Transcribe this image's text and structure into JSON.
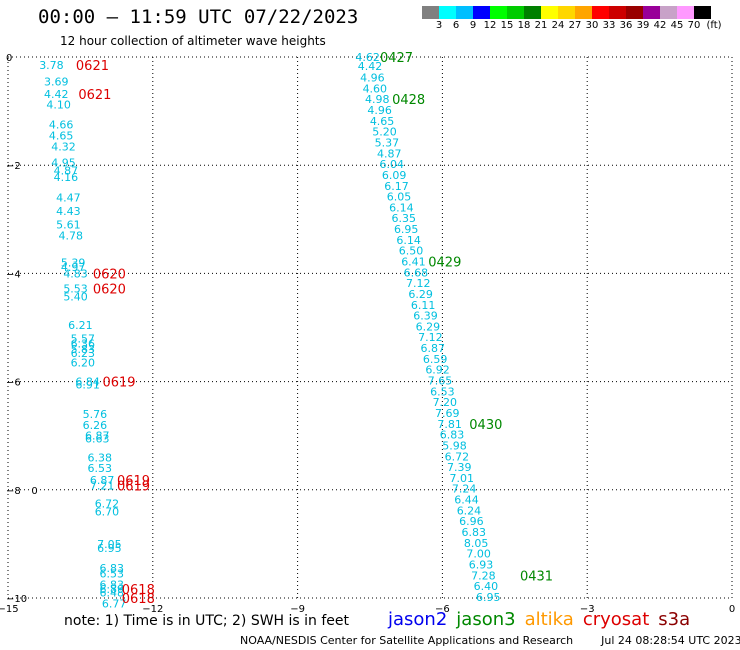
{
  "header": {
    "title": "00:00 – 11:59 UTC 07/22/2023",
    "subtitle": "12 hour collection of altimeter wave heights"
  },
  "colorbar": {
    "colors": [
      "#808080",
      "#00ffff",
      "#00bfff",
      "#0000ff",
      "#00ff00",
      "#00cc00",
      "#008000",
      "#ffff00",
      "#ffd700",
      "#ffa500",
      "#ff0000",
      "#cc0000",
      "#990000",
      "#990099",
      "#c8a2c8",
      "#ff99ff",
      "#000000"
    ],
    "labels": [
      "3",
      "6",
      "9",
      "12",
      "15",
      "18",
      "21",
      "24",
      "27",
      "30",
      "33",
      "36",
      "39",
      "42",
      "45",
      "70"
    ],
    "unit": "(ft)"
  },
  "footer": {
    "note": "note:  1) Time is in UTC; 2) SWH is in feet",
    "satellites": [
      {
        "name": "jason2",
        "color": "#0000ee"
      },
      {
        "name": "jason3",
        "color": "#008800"
      },
      {
        "name": "altika",
        "color": "#ff9900"
      },
      {
        "name": "cryosat",
        "color": "#dd0000"
      },
      {
        "name": "s3a",
        "color": "#8b0000"
      }
    ],
    "credit": "NOAA/NESDIS Center for Satellite Applications and Research",
    "timestamp": "Jul 24 08:28:54 UTC 2023"
  },
  "chart_data": {
    "type": "scatter",
    "xlim": [
      -15,
      0
    ],
    "ylim": [
      -10,
      0
    ],
    "x_ticks": [
      -15,
      -12,
      -9,
      -6,
      -3,
      0
    ],
    "y_ticks": [
      0,
      -2,
      -4,
      -6,
      -8,
      -10
    ],
    "x_tick_labels": [
      "−15",
      "−12",
      "−9",
      "−6",
      "−3",
      "0"
    ],
    "y_tick_labels": [
      "0",
      "−2",
      "−4",
      "−6",
      "−8",
      "−10"
    ],
    "grid": true,
    "track_color": "#00bfdf",
    "series": [
      {
        "satellite": "cryosat",
        "points": [
          {
            "x": -14.1,
            "y": -0.15,
            "v": "3.78"
          },
          {
            "x": -14.0,
            "y": -0.45,
            "v": "3.69"
          },
          {
            "x": -14.0,
            "y": -0.68,
            "v": "4.42"
          },
          {
            "x": -13.95,
            "y": -0.88,
            "v": "4.10"
          },
          {
            "x": -13.9,
            "y": -1.25,
            "v": "4.66"
          },
          {
            "x": -13.9,
            "y": -1.45,
            "v": "4.65"
          },
          {
            "x": -13.85,
            "y": -1.65,
            "v": "4.32"
          },
          {
            "x": -13.85,
            "y": -1.95,
            "v": "4.95"
          },
          {
            "x": -13.8,
            "y": -2.1,
            "v": "4.87"
          },
          {
            "x": -13.8,
            "y": -2.22,
            "v": "4.16"
          },
          {
            "x": -13.75,
            "y": -2.6,
            "v": "4.47"
          },
          {
            "x": -13.75,
            "y": -2.85,
            "v": "4.43"
          },
          {
            "x": -13.75,
            "y": -3.1,
            "v": "5.61"
          },
          {
            "x": -13.7,
            "y": -3.3,
            "v": "4.78"
          },
          {
            "x": -13.65,
            "y": -3.8,
            "v": "5.39"
          },
          {
            "x": -13.65,
            "y": -3.88,
            "v": "4.97"
          },
          {
            "x": -13.6,
            "y": -4.0,
            "v": "4.83"
          },
          {
            "x": -13.6,
            "y": -4.28,
            "v": "5.53"
          },
          {
            "x": -13.6,
            "y": -4.43,
            "v": "5.40"
          },
          {
            "x": -13.5,
            "y": -4.95,
            "v": "6.21"
          },
          {
            "x": -13.45,
            "y": -5.2,
            "v": "5.57"
          },
          {
            "x": -13.45,
            "y": -5.3,
            "v": "6.36"
          },
          {
            "x": -13.45,
            "y": -5.4,
            "v": "5.83"
          },
          {
            "x": -13.45,
            "y": -5.47,
            "v": "6.23"
          },
          {
            "x": -13.45,
            "y": -5.65,
            "v": "6.20"
          },
          {
            "x": -13.35,
            "y": -6.0,
            "v": "6.84"
          },
          {
            "x": -13.35,
            "y": -6.05,
            "v": "6.91"
          },
          {
            "x": -13.2,
            "y": -6.6,
            "v": "5.76"
          },
          {
            "x": -13.2,
            "y": -6.8,
            "v": "6.26"
          },
          {
            "x": -13.15,
            "y": -7.0,
            "v": "6.87"
          },
          {
            "x": -13.15,
            "y": -7.05,
            "v": "6.63"
          },
          {
            "x": -13.1,
            "y": -7.4,
            "v": "6.38"
          },
          {
            "x": -13.1,
            "y": -7.6,
            "v": "6.53"
          },
          {
            "x": -13.05,
            "y": -7.82,
            "v": "6.87"
          },
          {
            "x": -13.05,
            "y": -7.92,
            "v": "7.21"
          },
          {
            "x": -12.95,
            "y": -8.25,
            "v": "6.72"
          },
          {
            "x": -12.95,
            "y": -8.4,
            "v": "6.70"
          },
          {
            "x": -12.9,
            "y": -9.0,
            "v": "7.05"
          },
          {
            "x": -12.9,
            "y": -9.08,
            "v": "6.95"
          },
          {
            "x": -12.85,
            "y": -9.45,
            "v": "6.83"
          },
          {
            "x": -12.85,
            "y": -9.55,
            "v": "6.53"
          },
          {
            "x": -12.85,
            "y": -9.75,
            "v": "6.83"
          },
          {
            "x": -12.85,
            "y": -9.83,
            "v": "6.89"
          },
          {
            "x": -12.85,
            "y": -9.9,
            "v": "6.48"
          },
          {
            "x": -12.8,
            "y": -10.1,
            "v": "6.77"
          }
        ],
        "labels": [
          {
            "x": -13.25,
            "y": -0.15,
            "t": "0621"
          },
          {
            "x": -13.2,
            "y": -0.68,
            "t": "0621"
          },
          {
            "x": -12.9,
            "y": -4.0,
            "t": "0620"
          },
          {
            "x": -12.9,
            "y": -4.28,
            "t": "0620"
          },
          {
            "x": -12.7,
            "y": -6.0,
            "t": "0619"
          },
          {
            "x": -12.4,
            "y": -7.82,
            "t": "0619"
          },
          {
            "x": -12.4,
            "y": -7.92,
            "t": "0619"
          },
          {
            "x": -12.3,
            "y": -9.83,
            "t": "0618"
          },
          {
            "x": -12.3,
            "y": -10.0,
            "t": "0618"
          }
        ]
      },
      {
        "satellite": "jason3",
        "points": [
          {
            "x": -7.55,
            "y": 0.0,
            "v": "4.62"
          },
          {
            "x": -7.5,
            "y": -0.17,
            "v": "4.42"
          },
          {
            "x": -7.45,
            "y": -0.38,
            "v": "4.96"
          },
          {
            "x": -7.4,
            "y": -0.58,
            "v": "4.60"
          },
          {
            "x": -7.35,
            "y": -0.78,
            "v": "4.98"
          },
          {
            "x": -7.3,
            "y": -0.98,
            "v": "4.96"
          },
          {
            "x": -7.25,
            "y": -1.18,
            "v": "4.65"
          },
          {
            "x": -7.2,
            "y": -1.38,
            "v": "5.20"
          },
          {
            "x": -7.15,
            "y": -1.58,
            "v": "5.37"
          },
          {
            "x": -7.1,
            "y": -1.78,
            "v": "4.87"
          },
          {
            "x": -7.05,
            "y": -1.98,
            "v": "6.04"
          },
          {
            "x": -7.0,
            "y": -2.18,
            "v": "6.09"
          },
          {
            "x": -6.95,
            "y": -2.38,
            "v": "6.17"
          },
          {
            "x": -6.9,
            "y": -2.58,
            "v": "6.05"
          },
          {
            "x": -6.85,
            "y": -2.78,
            "v": "6.14"
          },
          {
            "x": -6.8,
            "y": -2.98,
            "v": "6.35"
          },
          {
            "x": -6.75,
            "y": -3.18,
            "v": "6.95"
          },
          {
            "x": -6.7,
            "y": -3.38,
            "v": "6.14"
          },
          {
            "x": -6.65,
            "y": -3.58,
            "v": "6.50"
          },
          {
            "x": -6.6,
            "y": -3.78,
            "v": "6.41"
          },
          {
            "x": -6.55,
            "y": -3.98,
            "v": "6.68"
          },
          {
            "x": -6.5,
            "y": -4.18,
            "v": "7.12"
          },
          {
            "x": -6.45,
            "y": -4.38,
            "v": "6.29"
          },
          {
            "x": -6.4,
            "y": -4.58,
            "v": "6.11"
          },
          {
            "x": -6.35,
            "y": -4.78,
            "v": "6.39"
          },
          {
            "x": -6.3,
            "y": -4.98,
            "v": "6.29"
          },
          {
            "x": -6.25,
            "y": -5.18,
            "v": "7.12"
          },
          {
            "x": -6.2,
            "y": -5.38,
            "v": "6.87"
          },
          {
            "x": -6.15,
            "y": -5.58,
            "v": "6.59"
          },
          {
            "x": -6.1,
            "y": -5.78,
            "v": "6.92"
          },
          {
            "x": -6.05,
            "y": -5.98,
            "v": "7.65"
          },
          {
            "x": -6.0,
            "y": -6.18,
            "v": "6.53"
          },
          {
            "x": -5.95,
            "y": -6.38,
            "v": "7.20"
          },
          {
            "x": -5.9,
            "y": -6.58,
            "v": "7.69"
          },
          {
            "x": -5.85,
            "y": -6.78,
            "v": "7.81"
          },
          {
            "x": -5.8,
            "y": -6.98,
            "v": "6.83"
          },
          {
            "x": -5.75,
            "y": -7.18,
            "v": "5.98"
          },
          {
            "x": -5.7,
            "y": -7.38,
            "v": "6.72"
          },
          {
            "x": -5.65,
            "y": -7.58,
            "v": "7.39"
          },
          {
            "x": -5.6,
            "y": -7.78,
            "v": "7.01"
          },
          {
            "x": -5.55,
            "y": -7.98,
            "v": "7.24"
          },
          {
            "x": -5.5,
            "y": -8.18,
            "v": "6.44"
          },
          {
            "x": -5.45,
            "y": -8.38,
            "v": "6.24"
          },
          {
            "x": -5.4,
            "y": -8.58,
            "v": "6.96"
          },
          {
            "x": -5.35,
            "y": -8.78,
            "v": "6.83"
          },
          {
            "x": -5.3,
            "y": -8.98,
            "v": "8.05"
          },
          {
            "x": -5.25,
            "y": -9.18,
            "v": "7.00"
          },
          {
            "x": -5.2,
            "y": -9.38,
            "v": "6.93"
          },
          {
            "x": -5.15,
            "y": -9.58,
            "v": "7.28"
          },
          {
            "x": -5.1,
            "y": -9.78,
            "v": "6.40"
          },
          {
            "x": -5.05,
            "y": -9.98,
            "v": "6.95"
          }
        ],
        "labels": [
          {
            "x": -6.95,
            "y": 0.0,
            "t": "0427"
          },
          {
            "x": -6.7,
            "y": -0.78,
            "t": "0428"
          },
          {
            "x": -5.95,
            "y": -3.78,
            "t": "0429"
          },
          {
            "x": -5.1,
            "y": -6.78,
            "t": "0430"
          },
          {
            "x": -4.05,
            "y": -9.58,
            "t": "0431"
          }
        ]
      }
    ],
    "other_marks": [
      {
        "x": -14.45,
        "y": -8.0,
        "t": "0"
      }
    ]
  }
}
